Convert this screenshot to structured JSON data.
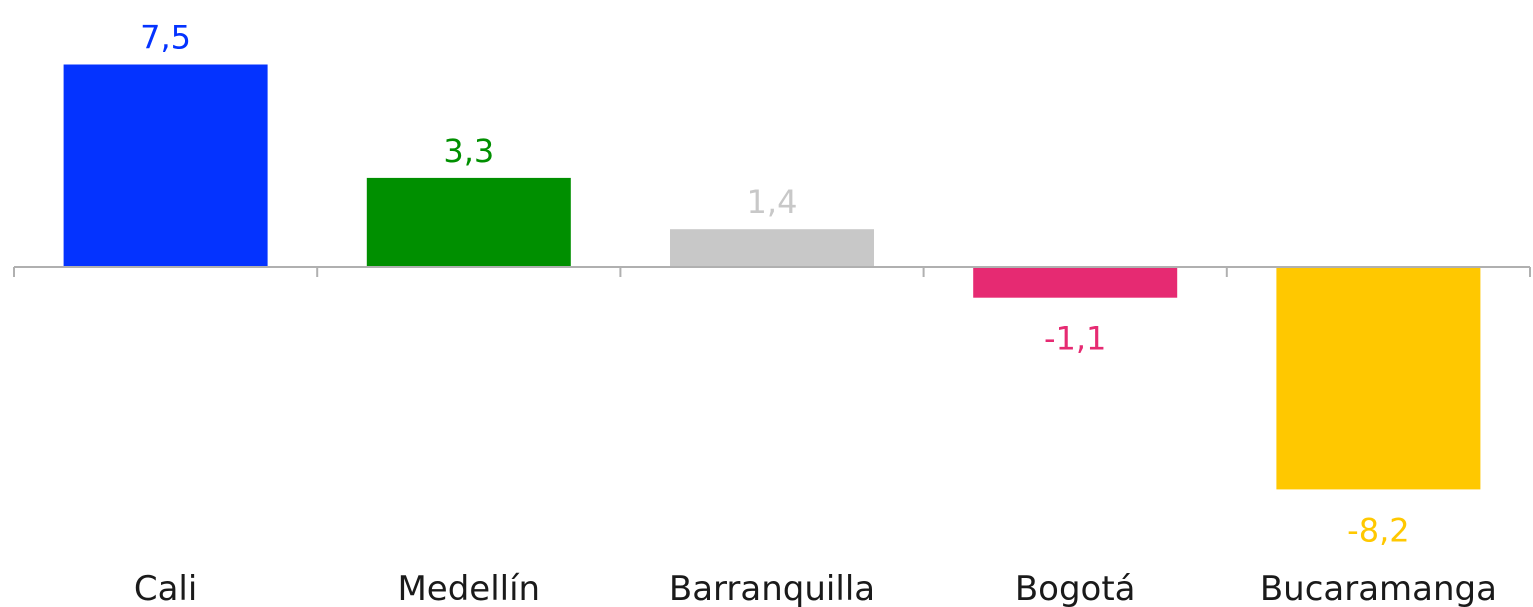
{
  "chart_data": {
    "type": "bar",
    "categories": [
      "Cali",
      "Medellín",
      "Barranquilla",
      "Bogotá",
      "Bucaramanga"
    ],
    "values": [
      7.5,
      3.3,
      1.4,
      -1.1,
      -8.2
    ],
    "value_labels": [
      "7,5",
      "3,3",
      "1,4",
      "-1,1",
      "-8,2"
    ],
    "colors": [
      "#0433ff",
      "#008f00",
      "#c8c8c8",
      "#e62a72",
      "#ffc800"
    ],
    "axis_color": "#b0b0b0",
    "category_text_color": "#1a1a1a",
    "ylim": [
      -8.2,
      7.5
    ],
    "grid": false,
    "legend": "none"
  }
}
